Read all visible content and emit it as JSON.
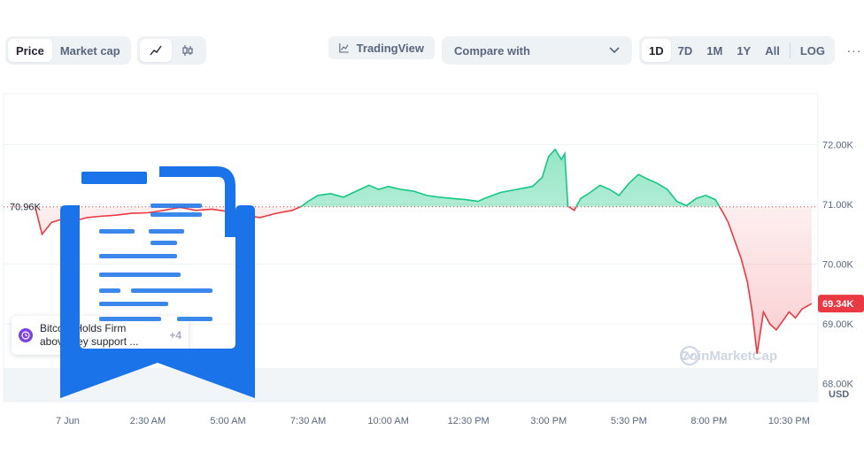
{
  "toolbar": {
    "price_tabs": [
      {
        "label": "Price",
        "active": true
      },
      {
        "label": "Market cap",
        "active": false
      }
    ],
    "chart_types": [
      {
        "icon": "line-chart-icon",
        "active": true
      },
      {
        "icon": "candlestick-icon",
        "active": false
      }
    ],
    "tradingview_label": "TradingView",
    "compare_label": "Compare with",
    "ranges": [
      {
        "label": "1D",
        "active": true
      },
      {
        "label": "7D",
        "active": false
      },
      {
        "label": "1M",
        "active": false
      },
      {
        "label": "1Y",
        "active": false
      },
      {
        "label": "All",
        "active": false
      }
    ],
    "log_label": "LOG",
    "more_label": "···"
  },
  "news": {
    "text_line1": "Bitcoin Holds Firm",
    "text_line2": "above key support ...",
    "count": "+4"
  },
  "watermark": "CoinMarketCap",
  "colors": {
    "up": "#16c784",
    "down": "#ea3943",
    "text_muted": "#58667e",
    "control_bg": "#eff2f5",
    "overlay_blue": "#1a73e8"
  },
  "chart_data": {
    "type": "area",
    "currency": "USD",
    "reference_value": 70.96,
    "reference_label": "70.96K",
    "current_value": 69.34,
    "current_label": "69.34K",
    "ylim": [
      67.7,
      72.85
    ],
    "y_ticks": [
      {
        "value": 72.0,
        "label": "72.00K"
      },
      {
        "value": 71.0,
        "label": "71.00K"
      },
      {
        "value": 70.0,
        "label": "70.00K"
      },
      {
        "value": 69.0,
        "label": "69.00K"
      },
      {
        "value": 68.0,
        "label": "68.00K"
      }
    ],
    "xlim": [
      -2.0,
      23.4
    ],
    "x_ticks": [
      {
        "value": 0,
        "label": "7 Jun"
      },
      {
        "value": 2.5,
        "label": "2:30 AM"
      },
      {
        "value": 5.0,
        "label": "5:00 AM"
      },
      {
        "value": 7.5,
        "label": "7:30 AM"
      },
      {
        "value": 10.0,
        "label": "10:00 AM"
      },
      {
        "value": 12.5,
        "label": "12:30 PM"
      },
      {
        "value": 15.0,
        "label": "3:00 PM"
      },
      {
        "value": 17.5,
        "label": "5:30 PM"
      },
      {
        "value": 20.0,
        "label": "8:00 PM"
      },
      {
        "value": 22.5,
        "label": "10:30 PM"
      }
    ],
    "grid": true,
    "series": [
      {
        "points": [
          [
            -1.0,
            70.93
          ],
          [
            -0.8,
            70.5
          ],
          [
            -0.5,
            70.7
          ],
          [
            -0.2,
            70.75
          ],
          [
            0.2,
            70.72
          ],
          [
            0.6,
            70.78
          ],
          [
            1.0,
            70.8
          ],
          [
            1.5,
            70.82
          ],
          [
            2.0,
            70.85
          ],
          [
            2.5,
            70.86
          ],
          [
            3.0,
            70.9
          ],
          [
            3.5,
            70.95
          ],
          [
            4.0,
            70.9
          ],
          [
            4.5,
            70.92
          ],
          [
            5.0,
            70.88
          ],
          [
            5.5,
            70.82
          ],
          [
            6.0,
            70.78
          ],
          [
            6.5,
            70.85
          ],
          [
            7.0,
            70.9
          ],
          [
            7.3,
            70.97
          ],
          [
            7.5,
            71.05
          ],
          [
            7.8,
            71.15
          ],
          [
            8.2,
            71.18
          ],
          [
            8.6,
            71.12
          ],
          [
            9.0,
            71.22
          ],
          [
            9.4,
            71.32
          ],
          [
            9.7,
            71.25
          ],
          [
            10.0,
            71.3
          ],
          [
            10.4,
            71.25
          ],
          [
            10.8,
            71.22
          ],
          [
            11.2,
            71.15
          ],
          [
            11.6,
            71.12
          ],
          [
            12.0,
            71.1
          ],
          [
            12.4,
            71.08
          ],
          [
            12.8,
            71.05
          ],
          [
            13.0,
            71.1
          ],
          [
            13.5,
            71.2
          ],
          [
            14.0,
            71.25
          ],
          [
            14.5,
            71.3
          ],
          [
            14.8,
            71.45
          ],
          [
            15.0,
            71.8
          ],
          [
            15.2,
            71.92
          ],
          [
            15.4,
            71.75
          ],
          [
            15.5,
            71.85
          ],
          [
            15.6,
            70.97
          ],
          [
            15.8,
            70.9
          ],
          [
            16.0,
            71.1
          ],
          [
            16.3,
            71.2
          ],
          [
            16.6,
            71.32
          ],
          [
            16.9,
            71.25
          ],
          [
            17.2,
            71.15
          ],
          [
            17.5,
            71.35
          ],
          [
            17.8,
            71.5
          ],
          [
            18.1,
            71.42
          ],
          [
            18.4,
            71.35
          ],
          [
            18.7,
            71.25
          ],
          [
            19.0,
            71.05
          ],
          [
            19.3,
            70.98
          ],
          [
            19.6,
            71.1
          ],
          [
            19.9,
            71.15
          ],
          [
            20.2,
            71.08
          ],
          [
            20.4,
            70.9
          ],
          [
            20.6,
            70.7
          ],
          [
            20.8,
            70.4
          ],
          [
            21.0,
            70.1
          ],
          [
            21.2,
            69.7
          ],
          [
            21.35,
            69.2
          ],
          [
            21.5,
            68.5
          ],
          [
            21.7,
            69.2
          ],
          [
            21.9,
            69.0
          ],
          [
            22.1,
            68.9
          ],
          [
            22.3,
            69.05
          ],
          [
            22.5,
            69.2
          ],
          [
            22.7,
            69.1
          ],
          [
            22.9,
            69.25
          ],
          [
            23.2,
            69.34
          ]
        ]
      }
    ]
  }
}
